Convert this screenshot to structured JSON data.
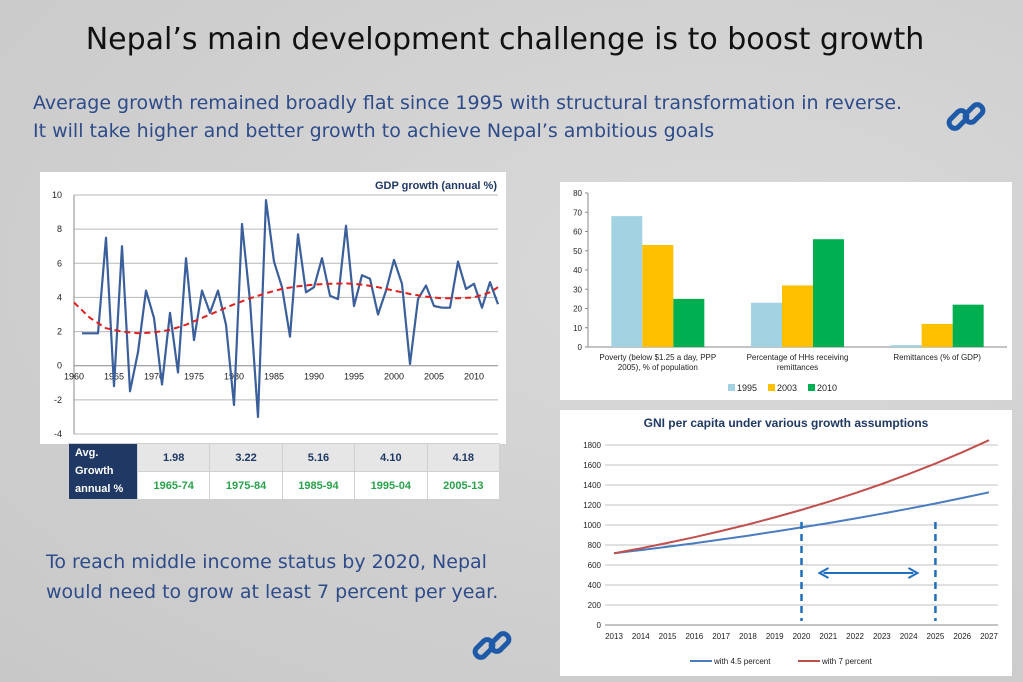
{
  "page": {
    "title": "Nepal’s main development challenge is to boost growth",
    "subtitle_line1": "Average growth remained broadly flat since 1995 with structural transformation in reverse.",
    "subtitle_line2": "It will take higher and better growth to achieve Nepal’s ambitious goals",
    "body_line1": "To reach middle income status by 2020, Nepal",
    "body_line2": "would need to grow at least 7 percent per year."
  },
  "table": {
    "header": "Avg. Growth annual %",
    "values": [
      "1.98",
      "3.22",
      "5.16",
      "4.10",
      "4.18"
    ],
    "periods": [
      "1965-74",
      "1975-84",
      "1985-94",
      "1995-04",
      "2005-13"
    ]
  },
  "chart_data": [
    {
      "type": "line",
      "title": "GDP growth (annual %)",
      "xlim": [
        1960,
        2013
      ],
      "ylim": [
        -4,
        10
      ],
      "x_ticks": [
        1960,
        1965,
        1970,
        1975,
        1980,
        1985,
        1990,
        1995,
        2000,
        2005,
        2010
      ],
      "y_ticks": [
        -4,
        -2,
        0,
        2,
        4,
        6,
        8,
        10
      ],
      "grid": true,
      "colors": {
        "actual": "#3a5f9a",
        "trend": "#e02020"
      },
      "series": [
        {
          "style": "solid",
          "x": [
            1961,
            1962,
            1963,
            1964,
            1965,
            1966,
            1967,
            1968,
            1969,
            1970,
            1971,
            1972,
            1973,
            1974,
            1975,
            1976,
            1977,
            1978,
            1979,
            1980,
            1981,
            1982,
            1983,
            1984,
            1985,
            1986,
            1987,
            1988,
            1989,
            1990,
            1991,
            1992,
            1993,
            1994,
            1995,
            1996,
            1997,
            1998,
            1999,
            2000,
            2001,
            2002,
            2003,
            2004,
            2005,
            2006,
            2007,
            2008,
            2009,
            2010,
            2011,
            2012,
            2013
          ],
          "values": [
            1.9,
            1.9,
            1.9,
            7.5,
            -1.2,
            7.0,
            -1.5,
            0.8,
            4.4,
            2.8,
            -1.1,
            3.1,
            -0.4,
            6.3,
            1.5,
            4.4,
            3.1,
            4.4,
            2.4,
            -2.3,
            8.3,
            3.8,
            -3.0,
            9.7,
            6.1,
            4.6,
            1.7,
            7.7,
            4.3,
            4.6,
            6.3,
            4.1,
            3.9,
            8.2,
            3.5,
            5.3,
            5.1,
            3.0,
            4.4,
            6.2,
            4.8,
            0.1,
            3.9,
            4.7,
            3.5,
            3.4,
            3.4,
            6.1,
            4.5,
            4.8,
            3.4,
            4.9,
            3.6
          ]
        },
        {
          "style": "dashed",
          "x": [
            1960,
            1962,
            1964,
            1966,
            1968,
            1970,
            1972,
            1974,
            1976,
            1978,
            1980,
            1982,
            1984,
            1986,
            1988,
            1990,
            1992,
            1994,
            1996,
            1998,
            2000,
            2002,
            2004,
            2006,
            2008,
            2010,
            2012,
            2013
          ],
          "values": [
            3.7,
            2.8,
            2.2,
            2.0,
            1.9,
            1.95,
            2.1,
            2.4,
            2.8,
            3.2,
            3.6,
            3.95,
            4.25,
            4.5,
            4.65,
            4.75,
            4.8,
            4.82,
            4.75,
            4.6,
            4.4,
            4.2,
            4.05,
            3.95,
            3.95,
            4.0,
            4.3,
            4.6
          ]
        }
      ]
    },
    {
      "type": "bar",
      "categories": [
        "Poverty (below $1.25 a day, PPP 2005), % of population",
        "Percentage of HHs receiving remittances",
        "Remittances (% of GDP)"
      ],
      "category_lines": [
        [
          "Poverty (below $1.25 a day, PPP",
          "2005), % of population"
        ],
        [
          "Percentage of HHs receiving",
          "remittances"
        ],
        [
          "Remittances (% of GDP)"
        ]
      ],
      "ylim": [
        0,
        80
      ],
      "y_ticks": [
        0,
        10,
        20,
        30,
        40,
        50,
        60,
        70,
        80
      ],
      "grid": false,
      "legend": "bottom",
      "series": [
        {
          "name": "1995",
          "color": "#a3d3e3",
          "values": [
            68,
            23,
            1
          ]
        },
        {
          "name": "2003",
          "color": "#ffc000",
          "values": [
            53,
            32,
            12
          ]
        },
        {
          "name": "2010",
          "color": "#00b050",
          "values": [
            25,
            56,
            22
          ]
        }
      ]
    },
    {
      "type": "line",
      "title": "GNI per capita under various growth assumptions",
      "categories": [
        "2013",
        "2014",
        "2015",
        "2016",
        "2017",
        "2018",
        "2019",
        "2020",
        "2021",
        "2022",
        "2023",
        "2024",
        "2025",
        "2026",
        "2027"
      ],
      "ylim": [
        0,
        1800
      ],
      "y_ticks": [
        0,
        200,
        400,
        600,
        800,
        1000,
        1200,
        1400,
        1600,
        1800
      ],
      "grid": true,
      "legend": "bottom",
      "markers": {
        "vertical_dashed_at": [
          "2020",
          "2025"
        ],
        "double_arrow_between": [
          "2020",
          "2025"
        ],
        "color": "#1f6fbf"
      },
      "series": [
        {
          "name": "with 4.5 percent",
          "color": "#4a7cc0",
          "values": [
            717,
            749,
            783,
            818,
            855,
            893,
            934,
            976,
            1019,
            1065,
            1113,
            1163,
            1215,
            1270,
            1327
          ]
        },
        {
          "name": "with 7 percent",
          "color": "#c0504d",
          "values": [
            717,
            767,
            821,
            878,
            940,
            1005,
            1076,
            1151,
            1232,
            1318,
            1410,
            1509,
            1614,
            1727,
            1848
          ]
        }
      ]
    }
  ]
}
